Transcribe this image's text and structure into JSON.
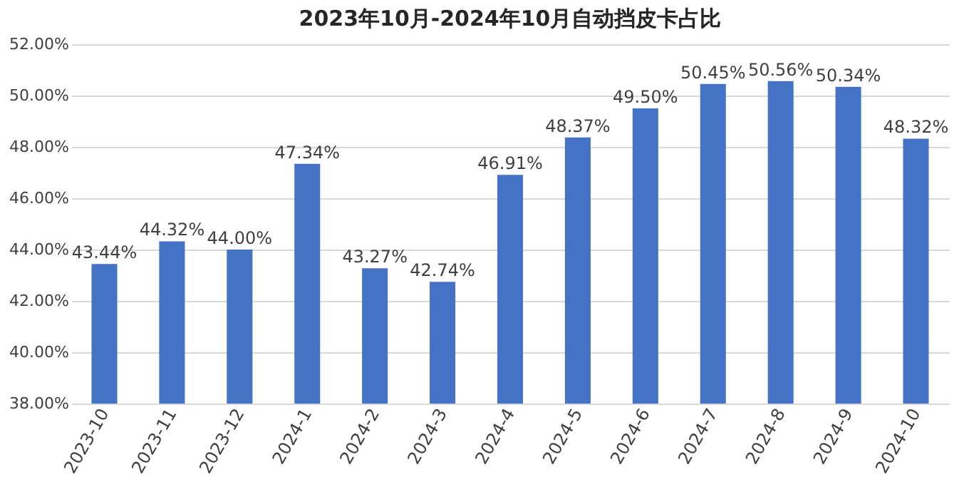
{
  "chart_data": {
    "type": "bar",
    "title": "2023年10月-2024年10月自动挡皮卡占比",
    "categories": [
      "2023-10",
      "2023-11",
      "2023-12",
      "2024-1",
      "2024-2",
      "2024-3",
      "2024-4",
      "2024-5",
      "2024-6",
      "2024-7",
      "2024-8",
      "2024-9",
      "2024-10"
    ],
    "values": [
      43.44,
      44.32,
      44.0,
      47.34,
      43.27,
      42.74,
      46.91,
      48.37,
      49.5,
      50.45,
      50.56,
      50.34,
      48.32
    ],
    "value_labels": [
      "43.44%",
      "44.32%",
      "44.00%",
      "47.34%",
      "43.27%",
      "42.74%",
      "46.91%",
      "48.37%",
      "49.50%",
      "50.45%",
      "50.56%",
      "50.34%",
      "48.32%"
    ],
    "color": "#4472c4",
    "ylim": [
      38,
      52
    ],
    "yticks": [
      {
        "value": 38,
        "label": "38.00%"
      },
      {
        "value": 40,
        "label": "40.00%"
      },
      {
        "value": 42,
        "label": "42.00%"
      },
      {
        "value": 44,
        "label": "44.00%"
      },
      {
        "value": 46,
        "label": "46.00%"
      },
      {
        "value": 48,
        "label": "48.00%"
      },
      {
        "value": 50,
        "label": "50.00%"
      },
      {
        "value": 52,
        "label": "52.00%"
      }
    ],
    "grid": "y"
  }
}
